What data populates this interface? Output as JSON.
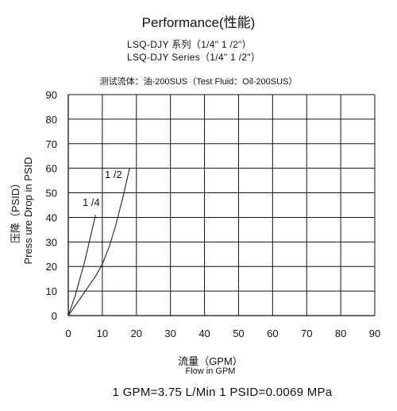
{
  "chart_data": {
    "type": "line",
    "title": "Performance(性能)",
    "subtitle_lines": [
      "LSQ-DJY 系列（1/4\" 1 /2\"）",
      "LSQ-DJY Series（1/4\" 1 /2\"）"
    ],
    "note": "测试流体：油-200SUS（Test Fluid：Oil-200SUS）",
    "xlabel": "流量（GPM）",
    "xlabel_en": "Flow in GPM",
    "ylabel": "压降（PSID）",
    "ylabel_en": "Press ure Drop in PSID",
    "xlim": [
      0,
      90
    ],
    "ylim": [
      0,
      90
    ],
    "x_ticks": [
      0,
      10,
      20,
      30,
      40,
      50,
      60,
      70,
      80,
      90
    ],
    "y_ticks": [
      0,
      10,
      20,
      30,
      40,
      50,
      60,
      70,
      80,
      90
    ],
    "grid": true,
    "series": [
      {
        "name": "1 /4",
        "x": [
          0,
          1,
          2,
          3,
          4,
          5,
          6,
          7,
          7.5,
          8
        ],
        "y": [
          0,
          4,
          8,
          13,
          18,
          23,
          29,
          35,
          38,
          41
        ]
      },
      {
        "name": "1 /2",
        "x": [
          0,
          2,
          4,
          6,
          8,
          10,
          12,
          14,
          16,
          18
        ],
        "y": [
          0,
          4,
          8,
          12,
          16,
          21,
          28,
          37,
          48,
          60
        ]
      }
    ],
    "footer": "1 GPM=3.75 L/Min   1 PSID=0.0069 MPa"
  }
}
